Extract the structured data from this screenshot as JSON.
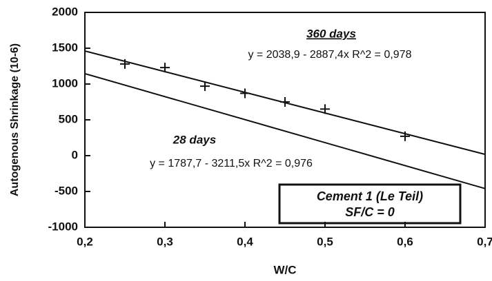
{
  "chart_data": {
    "type": "scatter",
    "xlabel": "W/C",
    "ylabel": "Autogenous Shrinkage (10-6)",
    "xlim": [
      0.2,
      0.7
    ],
    "ylim": [
      -1000,
      2000
    ],
    "xticks": [
      {
        "value": 0.2,
        "label": "0,2"
      },
      {
        "value": 0.3,
        "label": "0,3"
      },
      {
        "value": 0.4,
        "label": "0,4"
      },
      {
        "value": 0.5,
        "label": "0,5"
      },
      {
        "value": 0.6,
        "label": "0,6"
      },
      {
        "value": 0.7,
        "label": "0,7"
      }
    ],
    "yticks": [
      -1000,
      -500,
      0,
      500,
      1000,
      1500,
      2000
    ],
    "series": [
      {
        "name": "360 days",
        "equation": "y = 2038,9 - 2887,4x   R^2 = 0,978",
        "color": "#111111",
        "x": [
          0.2,
          0.7
        ],
        "values": [
          1461,
          18
        ],
        "points_x": [
          0.25,
          0.3,
          0.35,
          0.4,
          0.45,
          0.5,
          0.6
        ],
        "points": [
          1280,
          1230,
          970,
          870,
          750,
          650,
          270
        ]
      },
      {
        "name": "28 days",
        "equation": "y = 1787,7 - 3211,5x   R^2 = 0,976",
        "color": "#111111",
        "x": [
          0.2,
          0.7
        ],
        "values": [
          1145,
          -460
        ]
      }
    ],
    "box": [
      "Cement 1 (Le Teil)",
      "SF/C = 0"
    ]
  }
}
